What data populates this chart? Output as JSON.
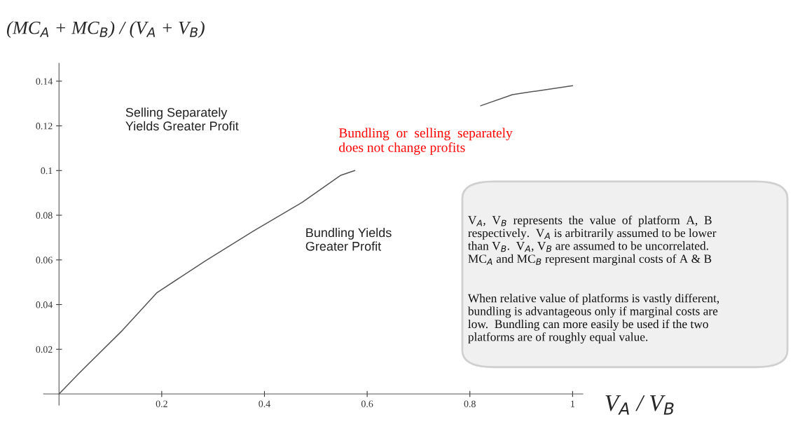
{
  "chart_data": {
    "type": "line",
    "ylabel": "(MC$_{A}$ + MC$_{B}$) / (V$_{A}$ + V$_{B}$)",
    "xlabel": "V$_{A}$ / V$_{B}$",
    "x": [
      0,
      0.04,
      0.124,
      0.191,
      0.284,
      0.379,
      0.473,
      0.548,
      0.576,
      0.7,
      0.821,
      0.883,
      1.0
    ],
    "series": [
      {
        "color": "#555555",
        "values": [
          0,
          0.0095,
          0.0286,
          0.0454,
          0.0594,
          0.073,
          0.0857,
          0.0978,
          0.1,
          null,
          0.129,
          0.134,
          0.138
        ]
      }
    ],
    "xlim": [
      -0.03,
      1.02
    ],
    "ylim": [
      -0.005,
      0.148
    ],
    "xticks": [
      0.2,
      0.4,
      0.6,
      0.8,
      1
    ],
    "yticks": [
      0.02,
      0.04,
      0.06,
      0.08,
      0.1,
      0.12,
      0.14
    ],
    "annotations": [
      "Selling Separately\nYields Greater Profit",
      "Bundling Yields\nGreater Profit",
      "Bundling  or  selling  separately\ndoes not change profits",
      "V$_{A}$,  V$_{B}$  represents  the  value  of  platform  A,  B\nrespectively.  V$_{A}$ is arbitrarily assumed to be lower\nthan V$_{B}$.  V$_{A}$, V$_{B}$ are assumed to be uncorrelated.\nMC$_{A}$ and MC$_{B}$ represent marginal costs of A & B",
      "When relative value of platforms is vastly different,\nbundling is advantageous only if marginal costs are\nlow.  Bundling can more easily be used if the two\nplatforms are of roughly equal value."
    ],
    "legend": false,
    "grid": false
  }
}
